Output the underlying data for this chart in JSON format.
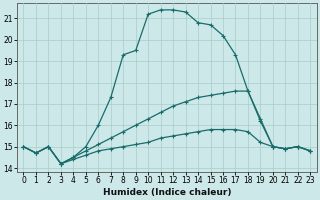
{
  "xlabel": "Humidex (Indice chaleur)",
  "bg_color": "#cce8e8",
  "grid_color": "#aacccc",
  "line_color": "#1a6b6b",
  "xlim": [
    -0.5,
    23.5
  ],
  "ylim": [
    13.8,
    21.7
  ],
  "yticks": [
    14,
    15,
    16,
    17,
    18,
    19,
    20,
    21
  ],
  "xticks": [
    0,
    1,
    2,
    3,
    4,
    5,
    6,
    7,
    8,
    9,
    10,
    11,
    12,
    13,
    14,
    15,
    16,
    17,
    18,
    19,
    20,
    21,
    22,
    23
  ],
  "series1_x": [
    0,
    1,
    2,
    3,
    4,
    5,
    6,
    7,
    8,
    9,
    10,
    11,
    12,
    13,
    14,
    15,
    16,
    17,
    18,
    19,
    20,
    21,
    22,
    23
  ],
  "series1_y": [
    15.0,
    14.7,
    15.0,
    14.2,
    14.5,
    15.0,
    16.0,
    17.3,
    19.3,
    19.5,
    21.2,
    21.4,
    21.4,
    21.3,
    20.8,
    20.7,
    20.2,
    19.3,
    17.6,
    16.3,
    15.0,
    14.9,
    15.0,
    14.8
  ],
  "series2_x": [
    0,
    1,
    2,
    3,
    4,
    5,
    6,
    7,
    8,
    9,
    10,
    11,
    12,
    13,
    14,
    15,
    16,
    17,
    18,
    19,
    20,
    21,
    22,
    23
  ],
  "series2_y": [
    15.0,
    14.7,
    15.0,
    14.2,
    14.5,
    14.8,
    15.1,
    15.4,
    15.7,
    16.0,
    16.3,
    16.6,
    16.9,
    17.1,
    17.3,
    17.4,
    17.5,
    17.6,
    17.6,
    16.2,
    15.0,
    14.9,
    15.0,
    14.8
  ],
  "series3_x": [
    0,
    1,
    2,
    3,
    4,
    5,
    6,
    7,
    8,
    9,
    10,
    11,
    12,
    13,
    14,
    15,
    16,
    17,
    18,
    19,
    20,
    21,
    22,
    23
  ],
  "series3_y": [
    15.0,
    14.7,
    15.0,
    14.2,
    14.4,
    14.6,
    14.8,
    14.9,
    15.0,
    15.1,
    15.2,
    15.4,
    15.5,
    15.6,
    15.7,
    15.8,
    15.8,
    15.8,
    15.7,
    15.2,
    15.0,
    14.9,
    15.0,
    14.8
  ],
  "tick_fontsize": 5.5,
  "xlabel_fontsize": 6.5,
  "linewidth": 0.9,
  "marker_size": 2.5
}
